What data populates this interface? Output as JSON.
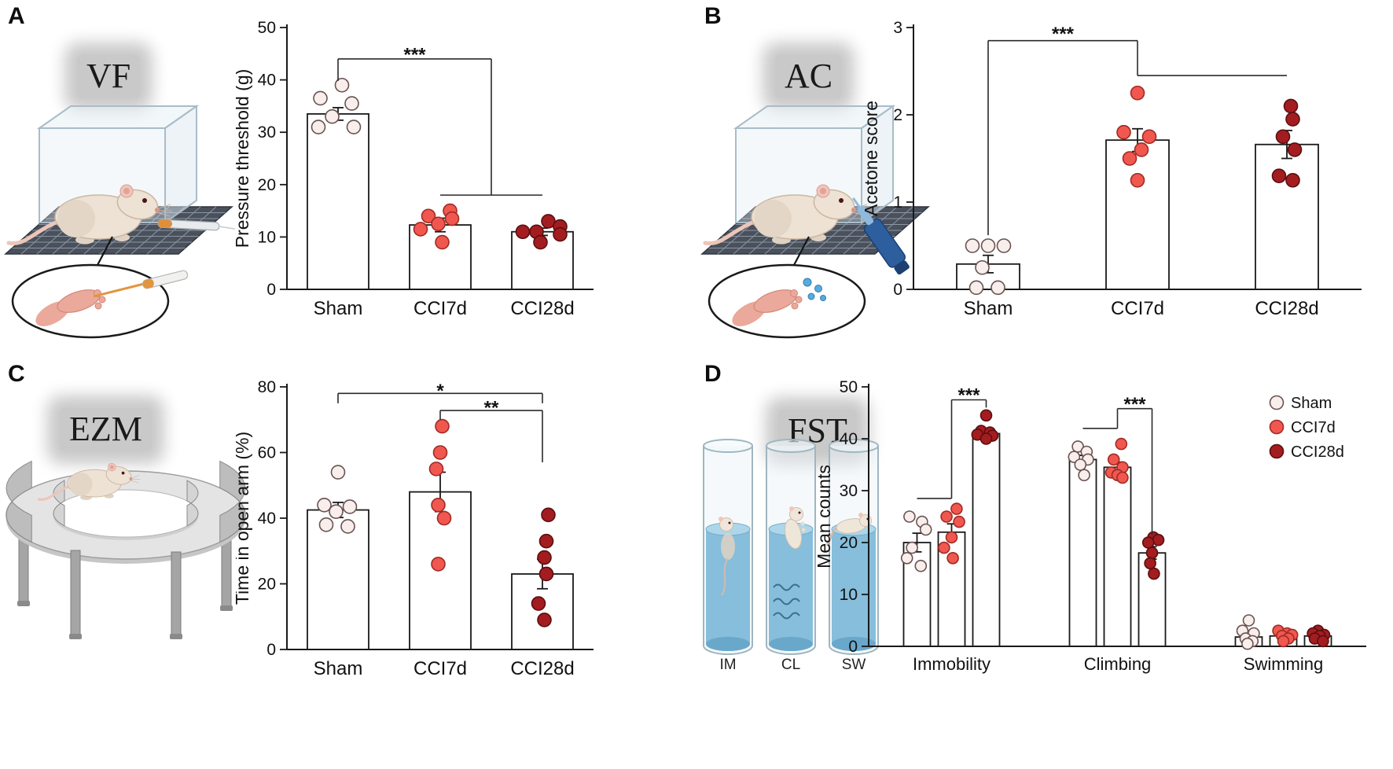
{
  "panels": [
    {
      "id": "A",
      "label": "A",
      "test_label": "VF"
    },
    {
      "id": "B",
      "label": "B",
      "test_label": "AC"
    },
    {
      "id": "C",
      "label": "C",
      "test_label": "EZM"
    },
    {
      "id": "D",
      "label": "D",
      "test_label": "FST",
      "cylinder_labels": [
        "IM",
        "CL",
        "SW"
      ]
    }
  ],
  "legend_labels": {
    "sham": "Sham",
    "cci7d": "CCI7d",
    "cci28d": "CCI28d"
  },
  "colors": {
    "sham": {
      "fill": "#f8eeec",
      "stroke": "#6b5252"
    },
    "cci7d": {
      "fill": "#f0584f",
      "stroke": "#a12a24"
    },
    "cci28d": {
      "fill": "#a31d20",
      "stroke": "#5c0e10"
    },
    "bar_fill": "#ffffff",
    "axis": "#1a1a1a"
  },
  "chart_data": [
    {
      "panel": "A",
      "type": "bar",
      "ylabel": "Pressure threshold (g)",
      "ylim": [
        0,
        50
      ],
      "yticks": [
        0,
        10,
        20,
        30,
        40,
        50
      ],
      "categories": [
        "Sham",
        "CCI7d",
        "CCI28d"
      ],
      "bars": [
        {
          "group": 0,
          "key": "sham",
          "value": 33.5,
          "sem": 1.2,
          "points": [
            [
              0.1,
              39
            ],
            [
              -0.45,
              36.5
            ],
            [
              0.35,
              35.5
            ],
            [
              -0.15,
              33
            ],
            [
              -0.5,
              31
            ],
            [
              0.4,
              31
            ]
          ]
        },
        {
          "group": 1,
          "key": "cci7d",
          "value": 12.3,
          "sem": 1.3,
          "points": [
            [
              0.25,
              15
            ],
            [
              -0.3,
              14
            ],
            [
              0.3,
              13.5
            ],
            [
              -0.05,
              12.5
            ],
            [
              -0.5,
              11.5
            ],
            [
              0.05,
              9
            ]
          ]
        },
        {
          "group": 2,
          "key": "cci28d",
          "value": 11.0,
          "sem": 0.7,
          "points": [
            [
              0.15,
              13
            ],
            [
              0.45,
              12
            ],
            [
              -0.5,
              11
            ],
            [
              -0.15,
              11
            ],
            [
              0.45,
              10.5
            ],
            [
              -0.05,
              9
            ]
          ]
        }
      ],
      "brackets": [
        {
          "label": "***",
          "label_at": [
            0.75,
            44.8
          ],
          "segments": [
            [
              [
                0,
                39.8
              ],
              [
                0,
                44
              ]
            ],
            [
              [
                0,
                44
              ],
              [
                1.5,
                44
              ]
            ],
            [
              [
                1.5,
                44
              ],
              [
                1.5,
                18
              ]
            ],
            [
              [
                1,
                18
              ],
              [
                2,
                18
              ]
            ]
          ]
        }
      ]
    },
    {
      "panel": "B",
      "type": "bar",
      "ylabel": "Acetone score",
      "ylim": [
        0,
        3
      ],
      "yticks": [
        0,
        1,
        2,
        3
      ],
      "categories": [
        "Sham",
        "CCI7d",
        "CCI28d"
      ],
      "bars": [
        {
          "group": 0,
          "key": "sham",
          "value": 0.29,
          "sem": 0.1,
          "points": [
            [
              -0.4,
              0.5
            ],
            [
              0,
              0.5
            ],
            [
              0.4,
              0.5
            ],
            [
              -0.15,
              0.25
            ],
            [
              -0.3,
              0.02
            ],
            [
              0.25,
              0.02
            ]
          ]
        },
        {
          "group": 1,
          "key": "cci7d",
          "value": 1.71,
          "sem": 0.13,
          "points": [
            [
              0,
              2.25
            ],
            [
              -0.35,
              1.8
            ],
            [
              0.3,
              1.75
            ],
            [
              0.1,
              1.6
            ],
            [
              -0.2,
              1.5
            ],
            [
              0,
              1.25
            ]
          ]
        },
        {
          "group": 2,
          "key": "cci28d",
          "value": 1.66,
          "sem": 0.16,
          "points": [
            [
              0.1,
              2.1
            ],
            [
              0.15,
              1.95
            ],
            [
              -0.1,
              1.75
            ],
            [
              0.2,
              1.6
            ],
            [
              -0.2,
              1.3
            ],
            [
              0.15,
              1.25
            ]
          ]
        }
      ],
      "brackets": [
        {
          "label": "***",
          "label_at": [
            0.5,
            2.93
          ],
          "segments": [
            [
              [
                0,
                0.62
              ],
              [
                0,
                2.85
              ]
            ],
            [
              [
                0,
                2.85
              ],
              [
                1,
                2.85
              ]
            ],
            [
              [
                1,
                2.85
              ],
              [
                1,
                2.45
              ]
            ],
            [
              [
                1,
                2.45
              ],
              [
                2,
                2.45
              ]
            ]
          ]
        }
      ]
    },
    {
      "panel": "C",
      "type": "bar",
      "ylabel": "Time in open arm (%)",
      "ylim": [
        0,
        80
      ],
      "yticks": [
        0,
        20,
        40,
        60,
        80
      ],
      "categories": [
        "Sham",
        "CCI7d",
        "CCI28d"
      ],
      "bars": [
        {
          "group": 0,
          "key": "sham",
          "value": 42.5,
          "sem": 2.3,
          "points": [
            [
              0,
              54
            ],
            [
              -0.35,
              44
            ],
            [
              0.3,
              43.5
            ],
            [
              -0.05,
              42
            ],
            [
              -0.3,
              38
            ],
            [
              0.25,
              37.5
            ]
          ]
        },
        {
          "group": 1,
          "key": "cci7d",
          "value": 48.0,
          "sem": 6.0,
          "points": [
            [
              0.05,
              68
            ],
            [
              0,
              60
            ],
            [
              -0.1,
              55
            ],
            [
              -0.05,
              44
            ],
            [
              0.1,
              40
            ],
            [
              -0.05,
              26
            ]
          ]
        },
        {
          "group": 2,
          "key": "cci28d",
          "value": 23.0,
          "sem": 4.5,
          "points": [
            [
              0.15,
              41
            ],
            [
              0.1,
              33
            ],
            [
              0.05,
              28
            ],
            [
              0.1,
              23
            ],
            [
              -0.1,
              14
            ],
            [
              0.05,
              9
            ]
          ]
        }
      ],
      "brackets": [
        {
          "label": "*",
          "label_at": [
            1,
            78.8
          ],
          "segments": [
            [
              [
                0,
                75
              ],
              [
                0,
                78
              ]
            ],
            [
              [
                0,
                78
              ],
              [
                2,
                78
              ]
            ],
            [
              [
                2,
                78
              ],
              [
                2,
                75
              ]
            ]
          ]
        },
        {
          "label": "**",
          "label_at": [
            1.5,
            73.6
          ],
          "segments": [
            [
              [
                1,
                70
              ],
              [
                1,
                72.8
              ]
            ],
            [
              [
                1,
                72.8
              ],
              [
                2,
                72.8
              ]
            ],
            [
              [
                2,
                72.8
              ],
              [
                2,
                57
              ]
            ]
          ]
        }
      ]
    },
    {
      "panel": "D",
      "type": "grouped-bar",
      "ylabel": "Mean counts",
      "ylim": [
        0,
        50
      ],
      "yticks": [
        0,
        10,
        20,
        30,
        40,
        50
      ],
      "categories": [
        "Immobility",
        "Climbing",
        "Swimming"
      ],
      "legend": [
        "sham",
        "cci7d",
        "cci28d"
      ],
      "bars": [
        {
          "group": 0,
          "key": "sham",
          "value": 20,
          "sem": 1.8,
          "points": [
            [
              -0.6,
              25
            ],
            [
              0.4,
              24
            ],
            [
              0.7,
              22.5
            ],
            [
              -0.4,
              19
            ],
            [
              -0.8,
              17
            ],
            [
              0.3,
              15.5
            ]
          ]
        },
        {
          "group": 0,
          "key": "cci7d",
          "value": 22,
          "sem": 1.6,
          "points": [
            [
              0.4,
              26.5
            ],
            [
              -0.4,
              25
            ],
            [
              0.6,
              24
            ],
            [
              0,
              21
            ],
            [
              -0.6,
              19
            ],
            [
              0.1,
              17
            ]
          ]
        },
        {
          "group": 0,
          "key": "cci28d",
          "value": 41,
          "sem": 0.6,
          "points": [
            [
              0,
              44.5
            ],
            [
              -0.4,
              41.5
            ],
            [
              0.3,
              41.2
            ],
            [
              -0.7,
              40.8
            ],
            [
              0.5,
              40.6
            ],
            [
              0,
              40
            ]
          ]
        },
        {
          "group": 1,
          "key": "sham",
          "value": 36,
          "sem": 0.8,
          "points": [
            [
              -0.4,
              38.5
            ],
            [
              0.3,
              37.5
            ],
            [
              -0.7,
              36.5
            ],
            [
              0.4,
              36
            ],
            [
              -0.2,
              35
            ],
            [
              0.1,
              33
            ]
          ]
        },
        {
          "group": 1,
          "key": "cci7d",
          "value": 34.5,
          "sem": 1.0,
          "points": [
            [
              0.3,
              39
            ],
            [
              -0.3,
              36
            ],
            [
              0.4,
              34.5
            ],
            [
              -0.5,
              33.5
            ],
            [
              0,
              33
            ],
            [
              0.4,
              32.5
            ]
          ]
        },
        {
          "group": 1,
          "key": "cci28d",
          "value": 18,
          "sem": 1.2,
          "points": [
            [
              0.1,
              21
            ],
            [
              0.5,
              20.5
            ],
            [
              -0.3,
              20
            ],
            [
              0,
              18
            ],
            [
              -0.15,
              16
            ],
            [
              0.15,
              14
            ]
          ]
        },
        {
          "group": 2,
          "key": "sham",
          "value": 1.8,
          "sem": 0.6,
          "points": [
            [
              0,
              5
            ],
            [
              -0.5,
              3
            ],
            [
              0.4,
              2.5
            ],
            [
              -0.25,
              1.5
            ],
            [
              0.3,
              1
            ],
            [
              -0.1,
              0.5
            ]
          ]
        },
        {
          "group": 2,
          "key": "cci7d",
          "value": 2.0,
          "sem": 0.4,
          "points": [
            [
              -0.4,
              3
            ],
            [
              0.3,
              2.5
            ],
            [
              0.7,
              2.2
            ],
            [
              -0.1,
              2
            ],
            [
              0.4,
              1.5
            ],
            [
              0,
              1
            ]
          ]
        },
        {
          "group": 2,
          "key": "cci28d",
          "value": 2.0,
          "sem": 0.4,
          "points": [
            [
              0,
              3
            ],
            [
              -0.4,
              2.5
            ],
            [
              0.5,
              2.2
            ],
            [
              0.15,
              2
            ],
            [
              -0.25,
              1.5
            ],
            [
              0.4,
              1
            ]
          ]
        }
      ],
      "brackets": [
        {
          "label": "***",
          "label_at": [
            1.5,
            48.4
          ],
          "segments": [
            [
              [
                0,
                28.5
              ],
              [
                1,
                28.5
              ]
            ],
            [
              [
                1,
                28.5
              ],
              [
                1,
                47.5
              ]
            ],
            [
              [
                1,
                47.5
              ],
              [
                2,
                47.5
              ]
            ],
            [
              [
                2,
                47.5
              ],
              [
                2,
                46
              ]
            ]
          ]
        },
        {
          "label": "***",
          "label_at": [
            4.5,
            46.7
          ],
          "segments": [
            [
              [
                3,
                42
              ],
              [
                4,
                42
              ]
            ],
            [
              [
                4,
                42
              ],
              [
                4,
                45.8
              ]
            ],
            [
              [
                4,
                45.8
              ],
              [
                5,
                45.8
              ]
            ],
            [
              [
                5,
                45.8
              ],
              [
                5,
                21.5
              ]
            ]
          ]
        }
      ]
    }
  ]
}
